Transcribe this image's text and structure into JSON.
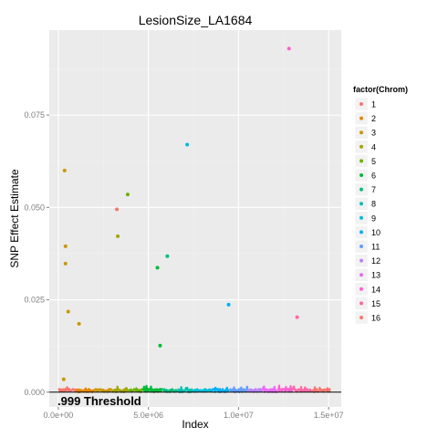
{
  "chart_data": {
    "type": "scatter",
    "title": "LesionSize_LA1684",
    "xlabel": "Index",
    "ylabel": "SNP Effect Estimate",
    "xlim": [
      -500000,
      15700000
    ],
    "ylim": [
      -0.004,
      0.098
    ],
    "x_ticks": [
      0,
      5000000,
      10000000,
      15000000
    ],
    "x_tick_labels": [
      "0.0e+00",
      "5.0e+06",
      "1.0e+07",
      "1.5e+07"
    ],
    "y_ticks": [
      0.0,
      0.025,
      0.05,
      0.075
    ],
    "y_tick_labels": [
      "0.000",
      "0.025",
      "0.050",
      "0.075"
    ],
    "grid": true,
    "threshold": {
      "y": 0.0,
      "label": ".999 Threshold"
    },
    "legend": {
      "title": "factor(Chrom)",
      "position": "right",
      "entries": [
        "1",
        "2",
        "3",
        "4",
        "5",
        "6",
        "7",
        "8",
        "9",
        "10",
        "11",
        "12",
        "13",
        "14",
        "15",
        "16"
      ]
    },
    "colors": [
      "#F8766D",
      "#E58700",
      "#C99800",
      "#A3A500",
      "#6BB100",
      "#00BA38",
      "#00BF7D",
      "#00C0AF",
      "#00BCD8",
      "#00B0F6",
      "#619CFF",
      "#B983FF",
      "#E76BF3",
      "#FD61D1",
      "#FF67A4",
      "#F8766D"
    ],
    "chrom_ranges": [
      [
        0,
        1000000
      ],
      [
        1000000,
        2000000
      ],
      [
        2000000,
        3000000
      ],
      [
        3000000,
        3900000
      ],
      [
        3900000,
        4700000
      ],
      [
        4700000,
        5700000
      ],
      [
        5700000,
        6600000
      ],
      [
        6600000,
        7500000
      ],
      [
        7500000,
        8500000
      ],
      [
        8500000,
        9500000
      ],
      [
        9500000,
        10500000
      ],
      [
        10500000,
        11300000
      ],
      [
        11300000,
        12200000
      ],
      [
        12200000,
        13000000
      ],
      [
        13000000,
        14100000
      ],
      [
        14100000,
        15100000
      ]
    ],
    "series": [
      {
        "name": "3",
        "points": [
          [
            350000,
            0.06
          ],
          [
            400000,
            0.0395
          ],
          [
            400000,
            0.0348
          ],
          [
            550000,
            0.0218
          ],
          [
            1150000,
            0.0185
          ],
          [
            300000,
            0.0035
          ]
        ]
      },
      {
        "name": "1",
        "points": [
          [
            3250000,
            0.0495
          ]
        ]
      },
      {
        "name": "4",
        "points": [
          [
            3300000,
            0.0422
          ]
        ]
      },
      {
        "name": "5",
        "points": [
          [
            3850000,
            0.0535
          ]
        ]
      },
      {
        "name": "6",
        "points": [
          [
            5500000,
            0.0337
          ],
          [
            5650000,
            0.0126
          ]
        ]
      },
      {
        "name": "7",
        "points": [
          [
            6050000,
            0.0368
          ]
        ]
      },
      {
        "name": "9",
        "points": [
          [
            7150000,
            0.067
          ]
        ]
      },
      {
        "name": "10",
        "points": [
          [
            9450000,
            0.0237
          ]
        ]
      },
      {
        "name": "14",
        "points": [
          [
            12800000,
            0.093
          ]
        ]
      },
      {
        "name": "15",
        "points": [
          [
            13250000,
            0.0203
          ]
        ]
      }
    ]
  }
}
